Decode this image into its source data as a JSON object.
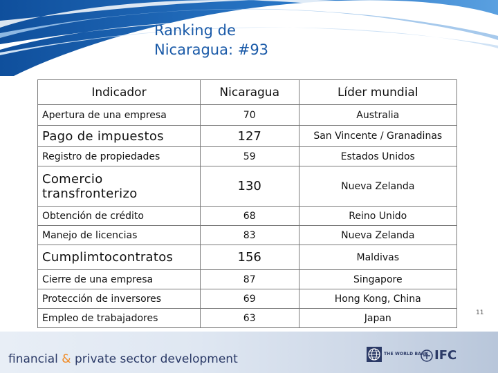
{
  "slide": {
    "title_line1": "Ranking de",
    "title_line2": "Nicaragua: #93",
    "page_number": "11"
  },
  "table": {
    "headers": [
      "Indicador",
      "Nicaragua",
      "Líder mundial"
    ],
    "rows": [
      {
        "indicator": "Apertura de una empresa",
        "rank": "70",
        "leader": "Australia"
      },
      {
        "indicator": "Pago de impuestos",
        "rank": "127",
        "leader": "San Vincente / Granadinas"
      },
      {
        "indicator": "Registro de propiedades",
        "rank": "59",
        "leader": "Estados Unidos"
      },
      {
        "indicator": "Comercio transfronterizo",
        "rank": "130",
        "leader": "Nueva Zelanda"
      },
      {
        "indicator": "Obtención de crédito",
        "rank": "68",
        "leader": "Reino Unido"
      },
      {
        "indicator": "Manejo de licencias",
        "rank": "83",
        "leader": "Nueva Zelanda"
      },
      {
        "indicator": "Cumplimtocontratos",
        "rank": "156",
        "leader": "Maldivas"
      },
      {
        "indicator": "Cierre de una empresa",
        "rank": "87",
        "leader": "Singapore"
      },
      {
        "indicator": "Protección de inversores",
        "rank": "69",
        "leader": "Hong Kong, China"
      },
      {
        "indicator": "Empleo de trabajadores",
        "rank": "63",
        "leader": "Japan"
      }
    ]
  },
  "footer": {
    "text_part1": "financial",
    "amp": "&",
    "text_part2": "private sector development",
    "worldbank_label": "THE WORLD BANK",
    "ifc_label": "IFC"
  },
  "colors": {
    "title": "#1a5aa8",
    "swoosh_dark": "#1b5ea8",
    "swoosh_light": "#9cc3ea",
    "footer_text": "#2b3a67",
    "accent": "#f08a24"
  }
}
